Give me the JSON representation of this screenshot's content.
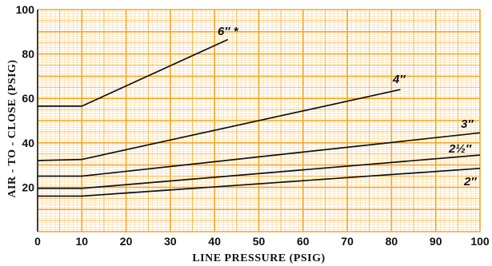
{
  "chart_data": {
    "type": "line",
    "xlabel": "LINE PRESSURE (PSIG)",
    "ylabel": "AIR - TO - CLOSE (PSIG)",
    "xlim": [
      0,
      100
    ],
    "ylim": [
      0,
      100
    ],
    "x_ticks": [
      "0",
      "10",
      "20",
      "30",
      "40",
      "50",
      "60",
      "70",
      "80",
      "90",
      "100"
    ],
    "y_ticks": [
      "20",
      "40",
      "60",
      "80",
      "100"
    ],
    "grid": true,
    "grid_color": "#f5a623",
    "line_color": "#111111",
    "series": [
      {
        "name": "6″ *",
        "points": [
          [
            0,
            56.5
          ],
          [
            10,
            56.5
          ],
          [
            43,
            86.5
          ]
        ]
      },
      {
        "name": "4″",
        "points": [
          [
            0,
            32
          ],
          [
            10,
            32.5
          ],
          [
            82,
            64
          ]
        ]
      },
      {
        "name": "3″",
        "points": [
          [
            0,
            25
          ],
          [
            10,
            25
          ],
          [
            100,
            44.5
          ]
        ]
      },
      {
        "name": "2½″",
        "points": [
          [
            0,
            19.5
          ],
          [
            10,
            19.5
          ],
          [
            100,
            34.5
          ]
        ]
      },
      {
        "name": "2″",
        "points": [
          [
            0,
            16
          ],
          [
            10,
            16
          ],
          [
            100,
            28.5
          ]
        ]
      }
    ]
  }
}
